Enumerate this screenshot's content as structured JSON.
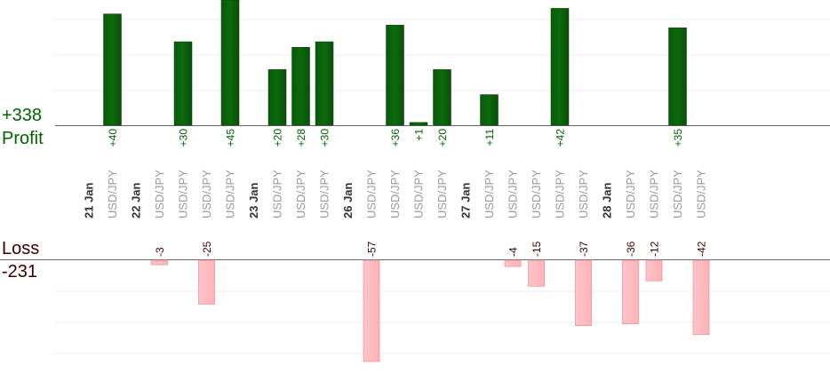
{
  "summary": {
    "profit_total": "+338",
    "profit_label": "Profit",
    "loss_label": "Loss",
    "loss_total": "-231"
  },
  "colors": {
    "profit_bar": "#0b6a0b",
    "loss_bar": "#ffb3b8",
    "profit_text": "#006400",
    "loss_text": "#3a0000",
    "date_text": "#333333",
    "pair_text": "#999999",
    "grid": "#eeeeee",
    "axis": "#666666"
  },
  "chart_data": {
    "type": "bar",
    "profit_ylim": [
      0,
      45
    ],
    "loss_ylim": [
      0,
      -57
    ],
    "grid": true,
    "columns": [
      {
        "label": "21 Jan",
        "kind": "date",
        "value": null
      },
      {
        "label": "USD/JPY",
        "kind": "pair",
        "value": 40
      },
      {
        "label": "22 Jan",
        "kind": "date",
        "value": null
      },
      {
        "label": "USD/JPY",
        "kind": "pair",
        "value": -3
      },
      {
        "label": "USD/JPY",
        "kind": "pair",
        "value": 30
      },
      {
        "label": "USD/JPY",
        "kind": "pair",
        "value": -25
      },
      {
        "label": "USD/JPY",
        "kind": "pair",
        "value": 45
      },
      {
        "label": "23 Jan",
        "kind": "date",
        "value": null
      },
      {
        "label": "USD/JPY",
        "kind": "pair",
        "value": 20
      },
      {
        "label": "USD/JPY",
        "kind": "pair",
        "value": 28
      },
      {
        "label": "USD/JPY",
        "kind": "pair",
        "value": 30
      },
      {
        "label": "26 Jan",
        "kind": "date",
        "value": null
      },
      {
        "label": "USD/JPY",
        "kind": "pair",
        "value": -57
      },
      {
        "label": "USD/JPY",
        "kind": "pair",
        "value": 36
      },
      {
        "label": "USD/JPY",
        "kind": "pair",
        "value": 1
      },
      {
        "label": "USD/JPY",
        "kind": "pair",
        "value": 20
      },
      {
        "label": "27 Jan",
        "kind": "date",
        "value": null
      },
      {
        "label": "USD/JPY",
        "kind": "pair",
        "value": 11
      },
      {
        "label": "USD/JPY",
        "kind": "pair",
        "value": -4
      },
      {
        "label": "USD/JPY",
        "kind": "pair",
        "value": -15
      },
      {
        "label": "USD/JPY",
        "kind": "pair",
        "value": 42
      },
      {
        "label": "USD/JPY",
        "kind": "pair",
        "value": -37
      },
      {
        "label": "28 Jan",
        "kind": "date",
        "value": null
      },
      {
        "label": "USD/JPY",
        "kind": "pair",
        "value": -36
      },
      {
        "label": "USD/JPY",
        "kind": "pair",
        "value": -12
      },
      {
        "label": "USD/JPY",
        "kind": "pair",
        "value": 35
      },
      {
        "label": "USD/JPY",
        "kind": "pair",
        "value": -42
      }
    ]
  }
}
